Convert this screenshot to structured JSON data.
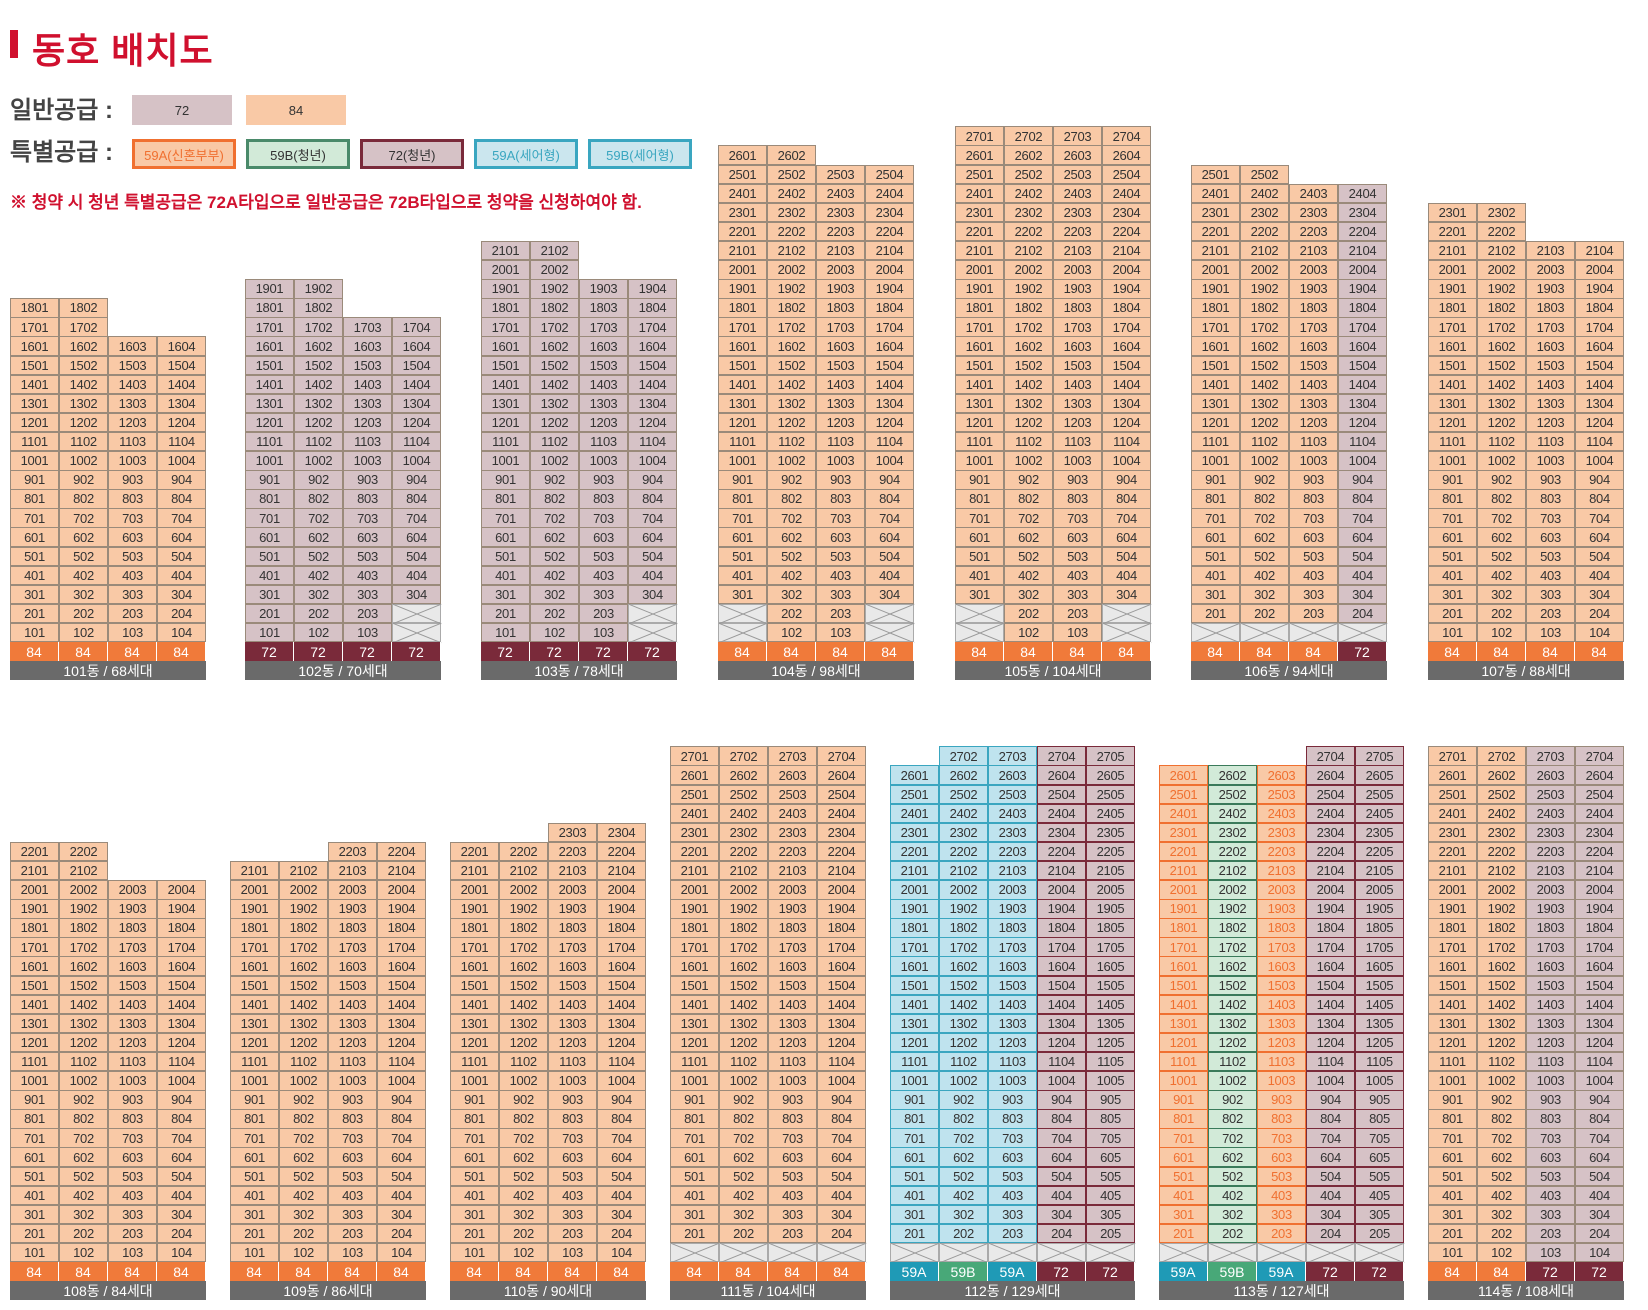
{
  "title": "동호 배치도",
  "legend": {
    "general_label": "일반공급 :",
    "special_label": "특별공급 :",
    "general_items": [
      {
        "label": "72",
        "bg": "#d6c2c6",
        "border": "#d6c2c6",
        "color": "#333333"
      },
      {
        "label": "84",
        "bg": "#f9c9a6",
        "border": "#f9c9a6",
        "color": "#333333"
      }
    ],
    "special_items": [
      {
        "label": "59A(신혼부부)",
        "bg": "#f9c9a6",
        "border": "#f07030",
        "color": "#f07030"
      },
      {
        "label": "59B(청년)",
        "bg": "#d2ead8",
        "border": "#4a8a6a",
        "color": "#333333"
      },
      {
        "label": "72(청년)",
        "bg": "#d6c2c6",
        "border": "#7a2a3a",
        "color": "#333333"
      },
      {
        "label": "59A(세어형)",
        "bg": "#cbe6ee",
        "border": "#3aa6c0",
        "color": "#3aa6c0"
      },
      {
        "label": "59B(세어형)",
        "bg": "#cbe6ee",
        "border": "#3aa6c0",
        "color": "#3aa6c0"
      }
    ],
    "note": "※ 청약 시 청년 특별공급은 72A타입으로 일반공급은 72B타입으로 청약을 신청하여야 함."
  },
  "colors": {
    "o": "#f9c9a6",
    "p": "#d6c2c6",
    "t": "#bfe3ee",
    "g": "#d2ead8",
    "a": "#f9c9a6",
    "orange_type": "#f07a3a",
    "maroon_type": "#7a2a3a",
    "teal_type": "#1f9ab6",
    "green_type": "#48a878",
    "footer": "#6a6a6a"
  },
  "buildings": [
    {
      "name": "101동 / 68세대",
      "top_floors": [
        18,
        18,
        16,
        16
      ],
      "pilotis": [],
      "colors": [
        "o",
        "o",
        "o",
        "o"
      ],
      "types": [
        "84",
        "84",
        "84",
        "84"
      ],
      "type_colors": [
        "orange",
        "orange",
        "orange",
        "orange"
      ]
    },
    {
      "name": "102동 / 70세대",
      "top_floors": [
        19,
        19,
        17,
        17
      ],
      "pilotis": [
        [
          4,
          2
        ],
        [
          4,
          1
        ]
      ],
      "colors": [
        "p",
        "p",
        "p",
        "p"
      ],
      "types": [
        "72",
        "72",
        "72",
        "72"
      ],
      "type_colors": [
        "maroon",
        "maroon",
        "maroon",
        "maroon"
      ]
    },
    {
      "name": "103동 / 78세대",
      "top_floors": [
        21,
        21,
        19,
        19
      ],
      "pilotis": [
        [
          4,
          2
        ],
        [
          4,
          1
        ]
      ],
      "colors": [
        "p",
        "p",
        "p",
        "p"
      ],
      "types": [
        "72",
        "72",
        "72",
        "72"
      ],
      "type_colors": [
        "maroon",
        "maroon",
        "maroon",
        "maroon"
      ]
    },
    {
      "name": "104동 / 98세대",
      "top_floors": [
        26,
        26,
        25,
        25
      ],
      "pilotis": [
        [
          1,
          1
        ],
        [
          1,
          2
        ],
        [
          4,
          1
        ],
        [
          4,
          2
        ]
      ],
      "colors": [
        "o",
        "o",
        "o",
        "o"
      ],
      "types": [
        "84",
        "84",
        "84",
        "84"
      ],
      "type_colors": [
        "orange",
        "orange",
        "orange",
        "orange"
      ]
    },
    {
      "name": "105동 / 104세대",
      "top_floors": [
        27,
        27,
        27,
        27
      ],
      "pilotis": [
        [
          1,
          1
        ],
        [
          1,
          2
        ],
        [
          4,
          1
        ],
        [
          4,
          2
        ]
      ],
      "colors": [
        "o",
        "o",
        "o",
        "o"
      ],
      "types": [
        "84",
        "84",
        "84",
        "84"
      ],
      "type_colors": [
        "orange",
        "orange",
        "orange",
        "orange"
      ]
    },
    {
      "name": "106동 / 94세대",
      "top_floors": [
        25,
        25,
        24,
        24
      ],
      "pilotis": [
        [
          1,
          1
        ],
        [
          2,
          1
        ],
        [
          3,
          1
        ],
        [
          4,
          1
        ]
      ],
      "colors": [
        "o",
        "o",
        "o",
        "p"
      ],
      "types": [
        "84",
        "84",
        "84",
        "72"
      ],
      "type_colors": [
        "orange",
        "orange",
        "orange",
        "maroon"
      ]
    },
    {
      "name": "107동 / 88세대",
      "top_floors": [
        23,
        23,
        21,
        21
      ],
      "pilotis": [],
      "colors": [
        "o",
        "o",
        "o",
        "o"
      ],
      "types": [
        "84",
        "84",
        "84",
        "84"
      ],
      "type_colors": [
        "orange",
        "orange",
        "orange",
        "orange"
      ]
    },
    {
      "name": "108동 / 84세대",
      "top_floors": [
        22,
        22,
        20,
        20
      ],
      "pilotis": [],
      "colors": [
        "o",
        "o",
        "o",
        "o"
      ],
      "types": [
        "84",
        "84",
        "84",
        "84"
      ],
      "type_colors": [
        "orange",
        "orange",
        "orange",
        "orange"
      ]
    },
    {
      "name": "109동 / 86세대",
      "top_floors": [
        21,
        21,
        22,
        22
      ],
      "pilotis": [],
      "colors": [
        "o",
        "o",
        "o",
        "o"
      ],
      "types": [
        "84",
        "84",
        "84",
        "84"
      ],
      "type_colors": [
        "orange",
        "orange",
        "orange",
        "orange"
      ]
    },
    {
      "name": "110동 / 90세대",
      "top_floors": [
        22,
        22,
        23,
        23
      ],
      "pilotis": [],
      "colors": [
        "o",
        "o",
        "o",
        "o"
      ],
      "types": [
        "84",
        "84",
        "84",
        "84"
      ],
      "type_colors": [
        "orange",
        "orange",
        "orange",
        "orange"
      ]
    },
    {
      "name": "111동 / 104세대",
      "top_floors": [
        27,
        27,
        27,
        27
      ],
      "pilotis": [
        [
          1,
          1
        ],
        [
          2,
          1
        ],
        [
          3,
          1
        ],
        [
          4,
          1
        ]
      ],
      "colors": [
        "o",
        "o",
        "o",
        "o"
      ],
      "types": [
        "84",
        "84",
        "84",
        "84"
      ],
      "type_colors": [
        "orange",
        "orange",
        "orange",
        "orange"
      ]
    },
    {
      "name": "112동 / 129세대",
      "top_floors": [
        26,
        27,
        27,
        27,
        27
      ],
      "pilotis": [
        [
          1,
          1
        ],
        [
          2,
          1
        ],
        [
          3,
          1
        ],
        [
          4,
          1
        ],
        [
          5,
          1
        ]
      ],
      "colors": [
        "t",
        "t",
        "t",
        "p",
        "p"
      ],
      "types": [
        "59A",
        "59B",
        "59A",
        "72",
        "72"
      ],
      "type_colors": [
        "teal",
        "green",
        "teal",
        "maroon",
        "maroon"
      ]
    },
    {
      "name": "113동 / 127세대",
      "top_floors": [
        26,
        26,
        26,
        27,
        27
      ],
      "pilotis": [
        [
          1,
          1
        ],
        [
          2,
          1
        ],
        [
          3,
          1
        ],
        [
          4,
          1
        ],
        [
          5,
          1
        ]
      ],
      "colors": [
        "a",
        "g",
        "a",
        "p",
        "p"
      ],
      "types": [
        "59A",
        "59B",
        "59A",
        "72",
        "72"
      ],
      "type_colors": [
        "teal",
        "green",
        "teal",
        "maroon",
        "maroon"
      ]
    },
    {
      "name": "114동 / 108세대",
      "top_floors": [
        27,
        27,
        27,
        27
      ],
      "pilotis": [],
      "colors": [
        "o",
        "o",
        "p",
        "p"
      ],
      "types": [
        "84",
        "84",
        "72",
        "72"
      ],
      "type_colors": [
        "orange",
        "orange",
        "maroon",
        "maroon"
      ]
    }
  ]
}
